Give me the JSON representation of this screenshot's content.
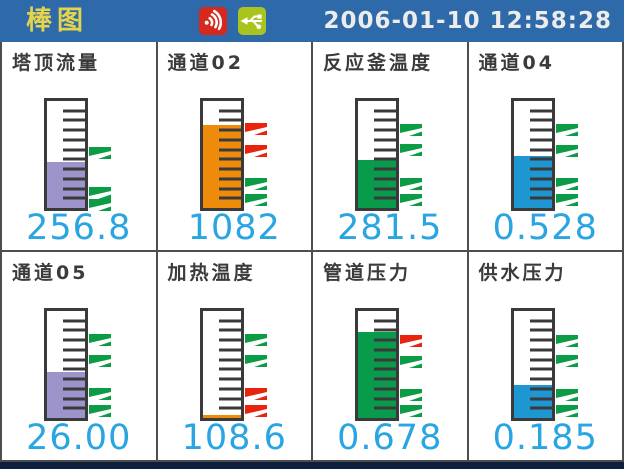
{
  "header": {
    "title": "棒图",
    "timestamp": "2006-01-10 12:58:28"
  },
  "colors": {
    "header_bg": "#2E69A9",
    "title_yellow": "#E5D44B",
    "timestamp_text": "#ECECEC",
    "value_cyan": "#29A5E1",
    "label_dark": "#3B3B3B",
    "marker_green": "#0C9C46",
    "marker_red": "#E8230E",
    "alarm_icon_red": "#D7281D",
    "usb_icon_lime": "#A9C41F",
    "footer_navy": "#0E1F3D"
  },
  "channels": [
    {
      "label": "塔顶流量",
      "value": "256.8",
      "fill_percent": 43,
      "fill_color": "#9C94CB",
      "markers": [
        {
          "pos": 51,
          "color": "green"
        },
        {
          "pos": 16,
          "color": "green"
        },
        {
          "pos": 5,
          "color": "green"
        }
      ]
    },
    {
      "label": "通道02",
      "value": "1082",
      "fill_percent": 78,
      "fill_color": "#EF8B0B",
      "markers": [
        {
          "pos": 73,
          "color": "red"
        },
        {
          "pos": 53,
          "color": "red"
        },
        {
          "pos": 24,
          "color": "green"
        },
        {
          "pos": 10,
          "color": "green"
        }
      ]
    },
    {
      "label": "反应釜温度",
      "value": "281.5",
      "fill_percent": 45,
      "fill_color": "#089B4C",
      "markers": [
        {
          "pos": 72,
          "color": "green"
        },
        {
          "pos": 54,
          "color": "green"
        },
        {
          "pos": 24,
          "color": "green"
        },
        {
          "pos": 10,
          "color": "green"
        }
      ]
    },
    {
      "label": "通道04",
      "value": "0.528",
      "fill_percent": 49,
      "fill_color": "#1E96D2",
      "markers": [
        {
          "pos": 72,
          "color": "green"
        },
        {
          "pos": 53,
          "color": "green"
        },
        {
          "pos": 24,
          "color": "green"
        },
        {
          "pos": 10,
          "color": "green"
        }
      ]
    },
    {
      "label": "通道05",
      "value": "26.00",
      "fill_percent": 43,
      "fill_color": "#9C94CB",
      "markers": [
        {
          "pos": 72,
          "color": "green"
        },
        {
          "pos": 53,
          "color": "green"
        },
        {
          "pos": 24,
          "color": "green"
        },
        {
          "pos": 9,
          "color": "green"
        }
      ]
    },
    {
      "label": "加热温度",
      "value": "108.6",
      "fill_percent": 3,
      "fill_color": "#EF8B0B",
      "markers": [
        {
          "pos": 72,
          "color": "green"
        },
        {
          "pos": 53,
          "color": "green"
        },
        {
          "pos": 24,
          "color": "red"
        },
        {
          "pos": 9,
          "color": "red"
        }
      ]
    },
    {
      "label": "管道压力",
      "value": "0.678",
      "fill_percent": 80,
      "fill_color": "#089B4C",
      "markers": [
        {
          "pos": 71,
          "color": "red"
        },
        {
          "pos": 52,
          "color": "green"
        },
        {
          "pos": 23,
          "color": "green"
        },
        {
          "pos": 9,
          "color": "green"
        }
      ]
    },
    {
      "label": "供水压力",
      "value": "0.185",
      "fill_percent": 31,
      "fill_color": "#1E96D2",
      "markers": [
        {
          "pos": 71,
          "color": "green"
        },
        {
          "pos": 53,
          "color": "green"
        },
        {
          "pos": 23,
          "color": "green"
        },
        {
          "pos": 9,
          "color": "green"
        }
      ]
    }
  ]
}
